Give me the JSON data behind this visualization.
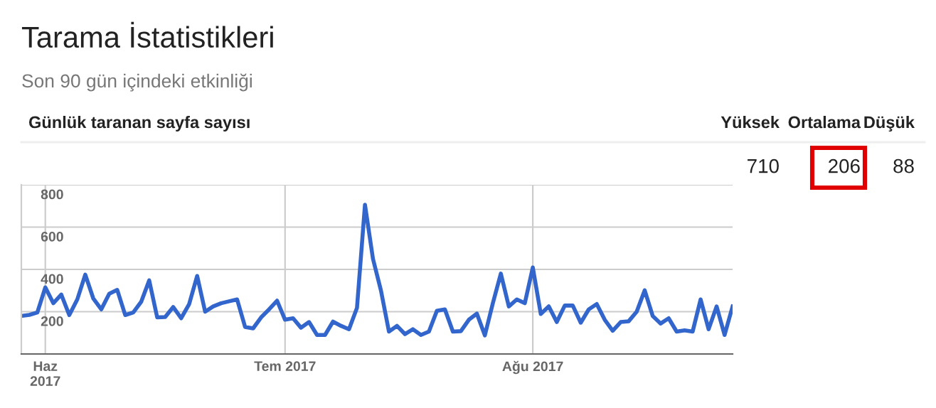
{
  "chart_data": {
    "type": "line",
    "title": "Tarama İstatistikleri",
    "subtitle": "Son 90 gün içindeki etkinliği",
    "annotations": [
      "Günlük taranan sayfa sayısı",
      "Yüksek",
      "Ortalama",
      "Düşük",
      "710",
      "206",
      "88"
    ],
    "x": [
      "2017-05-29",
      "2017-05-30",
      "2017-05-31",
      "2017-06-01",
      "2017-06-02",
      "2017-06-03",
      "2017-06-04",
      "2017-06-05",
      "2017-06-06",
      "2017-06-07",
      "2017-06-08",
      "2017-06-09",
      "2017-06-10",
      "2017-06-11",
      "2017-06-12",
      "2017-06-13",
      "2017-06-14",
      "2017-06-15",
      "2017-06-16",
      "2017-06-17",
      "2017-06-18",
      "2017-06-19",
      "2017-06-20",
      "2017-06-21",
      "2017-06-22",
      "2017-06-23",
      "2017-06-24",
      "2017-06-25",
      "2017-06-26",
      "2017-06-27",
      "2017-06-28",
      "2017-06-29",
      "2017-06-30",
      "2017-07-01",
      "2017-07-02",
      "2017-07-03",
      "2017-07-04",
      "2017-07-05",
      "2017-07-06",
      "2017-07-07",
      "2017-07-08",
      "2017-07-09",
      "2017-07-10",
      "2017-07-11",
      "2017-07-12",
      "2017-07-13",
      "2017-07-14",
      "2017-07-15",
      "2017-07-16",
      "2017-07-17",
      "2017-07-18",
      "2017-07-19",
      "2017-07-20",
      "2017-07-21",
      "2017-07-22",
      "2017-07-23",
      "2017-07-24",
      "2017-07-25",
      "2017-07-26",
      "2017-07-27",
      "2017-07-28",
      "2017-07-29",
      "2017-07-30",
      "2017-07-31",
      "2017-08-01",
      "2017-08-02",
      "2017-08-03",
      "2017-08-04",
      "2017-08-05",
      "2017-08-06",
      "2017-08-07",
      "2017-08-08",
      "2017-08-09",
      "2017-08-10",
      "2017-08-11",
      "2017-08-12",
      "2017-08-13",
      "2017-08-14",
      "2017-08-15",
      "2017-08-16",
      "2017-08-17",
      "2017-08-18",
      "2017-08-19",
      "2017-08-20",
      "2017-08-21",
      "2017-08-22",
      "2017-08-23",
      "2017-08-24",
      "2017-08-25",
      "2017-08-26"
    ],
    "series": [
      {
        "color": "#3366cc",
        "values": [
          180,
          185,
          196,
          315,
          240,
          281,
          184,
          258,
          375,
          263,
          211,
          285,
          303,
          184,
          196,
          247,
          348,
          173,
          175,
          222,
          169,
          236,
          369,
          200,
          225,
          240,
          249,
          258,
          128,
          121,
          173,
          211,
          252,
          162,
          169,
          124,
          151,
          90,
          90,
          153,
          133,
          117,
          218,
          706,
          450,
          300,
          106,
          133,
          94,
          117,
          90,
          106,
          204,
          211,
          106,
          108,
          162,
          191,
          88,
          240,
          380,
          225,
          258,
          240,
          409,
          189,
          225,
          151,
          229,
          229,
          148,
          211,
          236,
          162,
          110,
          151,
          155,
          200,
          301,
          180,
          144,
          169,
          106,
          112,
          106,
          258,
          117,
          225,
          90,
          225
        ]
      }
    ],
    "xlim": [
      "2017-05-29",
      "2017-08-26"
    ],
    "xticks": [
      {
        "value": "2017-06-01",
        "label": "Haz\n2017"
      },
      {
        "value": "2017-07-01",
        "label": "Tem 2017"
      },
      {
        "value": "2017-08-01",
        "label": "Ağu 2017"
      }
    ],
    "ylim": [
      0,
      800
    ],
    "yticks": [
      200,
      400,
      600,
      800
    ],
    "grid": true,
    "legend": false,
    "marker": "none",
    "line_style": "solid"
  }
}
